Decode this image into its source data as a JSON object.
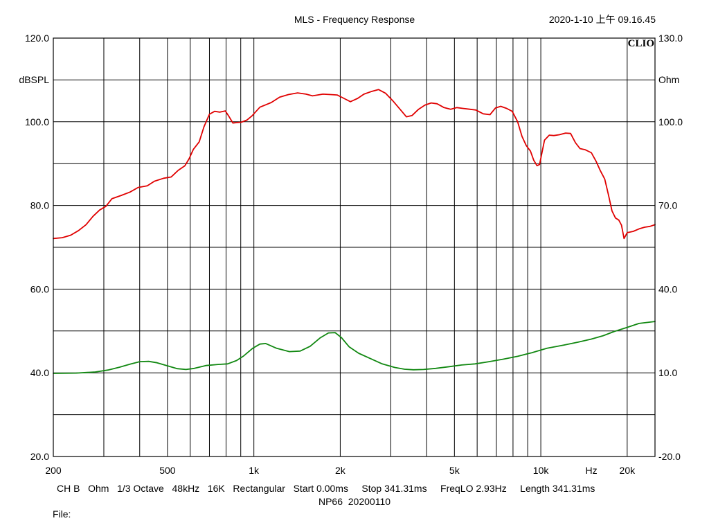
{
  "header": {
    "title": "MLS - Frequency Response",
    "timestamp": "2020-1-10 上午 09.16.45",
    "brand": "CLIO"
  },
  "footer": {
    "settings": "CH B   Ohm   1/3 Octave   48kHz   16K   Rectangular   Start 0.00ms     Stop 341.31ms     FreqLO 2.93Hz     Length 341.31ms",
    "note": "NP66  20200110",
    "file_label": "File:"
  },
  "chart_data": {
    "type": "line",
    "title": "MLS - Frequency Response",
    "xscale": "log",
    "xlim": [
      200,
      25000
    ],
    "xlabel_unit": "Hz",
    "x_ticks": [
      {
        "value": 200,
        "label": "200"
      },
      {
        "value": 500,
        "label": "500"
      },
      {
        "value": 1000,
        "label": "1k"
      },
      {
        "value": 2000,
        "label": "2k"
      },
      {
        "value": 5000,
        "label": "5k"
      },
      {
        "value": 10000,
        "label": "10k"
      },
      {
        "value": 20000,
        "label": "20k"
      }
    ],
    "x_unit_position": 15000,
    "x_gridlines": [
      300,
      400,
      500,
      600,
      700,
      800,
      900,
      1000,
      2000,
      3000,
      4000,
      5000,
      6000,
      7000,
      8000,
      9000,
      10000,
      20000
    ],
    "ylim_left": [
      20,
      120
    ],
    "ylabel_left": "dBSPL",
    "yticks_left": [
      {
        "value": 120,
        "label": "120.0"
      },
      {
        "value": 100,
        "label": "100.0"
      },
      {
        "value": 80,
        "label": "80.0"
      },
      {
        "value": 60,
        "label": "60.0"
      },
      {
        "value": 40,
        "label": "40.0"
      },
      {
        "value": 20,
        "label": "20.0"
      }
    ],
    "ylim_right": [
      -20,
      130
    ],
    "ylabel_right": "Ohm",
    "yticks_right": [
      {
        "value": 130,
        "label": "130.0"
      },
      {
        "value": 100,
        "label": "100.0"
      },
      {
        "value": 70,
        "label": "70.0"
      },
      {
        "value": 40,
        "label": "40.0"
      },
      {
        "value": 10,
        "label": "10.0"
      },
      {
        "value": -20,
        "label": "-20.0"
      }
    ],
    "y_gridlines_left": [
      30,
      40,
      50,
      60,
      70,
      80,
      90,
      100,
      110
    ],
    "grid": true,
    "series": [
      {
        "axis": "left",
        "color": "#e00000",
        "points": [
          [
            200,
            72.1
          ],
          [
            215,
            72.3
          ],
          [
            230,
            72.9
          ],
          [
            245,
            74.0
          ],
          [
            260,
            75.4
          ],
          [
            275,
            77.4
          ],
          [
            290,
            78.9
          ],
          [
            305,
            79.8
          ],
          [
            320,
            81.6
          ],
          [
            345,
            82.4
          ],
          [
            370,
            83.2
          ],
          [
            395,
            84.3
          ],
          [
            425,
            84.7
          ],
          [
            450,
            85.8
          ],
          [
            485,
            86.5
          ],
          [
            515,
            86.8
          ],
          [
            545,
            88.4
          ],
          [
            575,
            89.5
          ],
          [
            595,
            91.2
          ],
          [
            615,
            93.4
          ],
          [
            645,
            95.2
          ],
          [
            670,
            98.8
          ],
          [
            700,
            101.8
          ],
          [
            730,
            102.5
          ],
          [
            760,
            102.3
          ],
          [
            795,
            102.6
          ],
          [
            815,
            101.5
          ],
          [
            845,
            99.7
          ],
          [
            870,
            99.8
          ],
          [
            905,
            99.9
          ],
          [
            945,
            100.4
          ],
          [
            985,
            101.4
          ],
          [
            1050,
            103.5
          ],
          [
            1150,
            104.6
          ],
          [
            1230,
            105.9
          ],
          [
            1320,
            106.5
          ],
          [
            1420,
            106.9
          ],
          [
            1520,
            106.6
          ],
          [
            1600,
            106.2
          ],
          [
            1740,
            106.6
          ],
          [
            1850,
            106.5
          ],
          [
            1950,
            106.4
          ],
          [
            2060,
            105.6
          ],
          [
            2170,
            104.8
          ],
          [
            2300,
            105.6
          ],
          [
            2420,
            106.6
          ],
          [
            2560,
            107.2
          ],
          [
            2720,
            107.7
          ],
          [
            2880,
            106.8
          ],
          [
            3050,
            105.0
          ],
          [
            3250,
            102.8
          ],
          [
            3400,
            101.2
          ],
          [
            3560,
            101.5
          ],
          [
            3750,
            103.0
          ],
          [
            3950,
            104.0
          ],
          [
            4150,
            104.5
          ],
          [
            4350,
            104.3
          ],
          [
            4600,
            103.4
          ],
          [
            4850,
            103.0
          ],
          [
            5100,
            103.4
          ],
          [
            5350,
            103.2
          ],
          [
            5650,
            103.0
          ],
          [
            5950,
            102.8
          ],
          [
            6300,
            101.9
          ],
          [
            6650,
            101.7
          ],
          [
            6950,
            103.3
          ],
          [
            7250,
            103.7
          ],
          [
            7600,
            103.2
          ],
          [
            7950,
            102.5
          ],
          [
            8300,
            100.0
          ],
          [
            8600,
            96.5
          ],
          [
            8900,
            94.3
          ],
          [
            9200,
            93.0
          ],
          [
            9450,
            90.8
          ],
          [
            9700,
            89.5
          ],
          [
            9900,
            89.8
          ],
          [
            10300,
            95.6
          ],
          [
            10700,
            96.8
          ],
          [
            11100,
            96.7
          ],
          [
            11600,
            96.9
          ],
          [
            12200,
            97.3
          ],
          [
            12700,
            97.2
          ],
          [
            13200,
            95.0
          ],
          [
            13700,
            93.6
          ],
          [
            14300,
            93.3
          ],
          [
            15000,
            92.6
          ],
          [
            15600,
            90.5
          ],
          [
            16100,
            88.4
          ],
          [
            16700,
            86.3
          ],
          [
            17200,
            82.6
          ],
          [
            17700,
            78.7
          ],
          [
            18200,
            77.0
          ],
          [
            18700,
            76.5
          ],
          [
            19100,
            75.3
          ],
          [
            19500,
            72.1
          ],
          [
            20000,
            73.5
          ],
          [
            21000,
            73.8
          ],
          [
            22000,
            74.4
          ],
          [
            23000,
            74.8
          ],
          [
            24000,
            75.0
          ],
          [
            25000,
            75.4
          ]
        ]
      },
      {
        "axis": "right",
        "color": "#118811",
        "points": [
          [
            200,
            9.8
          ],
          [
            240,
            9.9
          ],
          [
            280,
            10.3
          ],
          [
            310,
            11.0
          ],
          [
            340,
            12.0
          ],
          [
            370,
            13.1
          ],
          [
            400,
            14.0
          ],
          [
            430,
            14.1
          ],
          [
            460,
            13.6
          ],
          [
            500,
            12.5
          ],
          [
            540,
            11.5
          ],
          [
            580,
            11.2
          ],
          [
            620,
            11.6
          ],
          [
            680,
            12.6
          ],
          [
            750,
            13.0
          ],
          [
            810,
            13.2
          ],
          [
            870,
            14.4
          ],
          [
            920,
            16.0
          ],
          [
            990,
            18.8
          ],
          [
            1050,
            20.3
          ],
          [
            1100,
            20.5
          ],
          [
            1200,
            18.8
          ],
          [
            1330,
            17.6
          ],
          [
            1450,
            17.8
          ],
          [
            1570,
            19.5
          ],
          [
            1700,
            22.5
          ],
          [
            1820,
            24.3
          ],
          [
            1920,
            24.4
          ],
          [
            2020,
            22.6
          ],
          [
            2150,
            19.3
          ],
          [
            2320,
            17.0
          ],
          [
            2550,
            15.1
          ],
          [
            2800,
            13.2
          ],
          [
            3100,
            11.9
          ],
          [
            3350,
            11.3
          ],
          [
            3600,
            11.1
          ],
          [
            3900,
            11.2
          ],
          [
            4300,
            11.6
          ],
          [
            4800,
            12.2
          ],
          [
            5300,
            12.8
          ],
          [
            5900,
            13.2
          ],
          [
            6600,
            14.0
          ],
          [
            7400,
            14.9
          ],
          [
            8300,
            15.9
          ],
          [
            9300,
            17.2
          ],
          [
            10500,
            18.8
          ],
          [
            12000,
            19.9
          ],
          [
            13500,
            21.0
          ],
          [
            15000,
            22.1
          ],
          [
            16500,
            23.3
          ],
          [
            18000,
            24.8
          ],
          [
            20000,
            26.3
          ],
          [
            22000,
            27.7
          ],
          [
            25000,
            28.4
          ]
        ]
      }
    ]
  }
}
